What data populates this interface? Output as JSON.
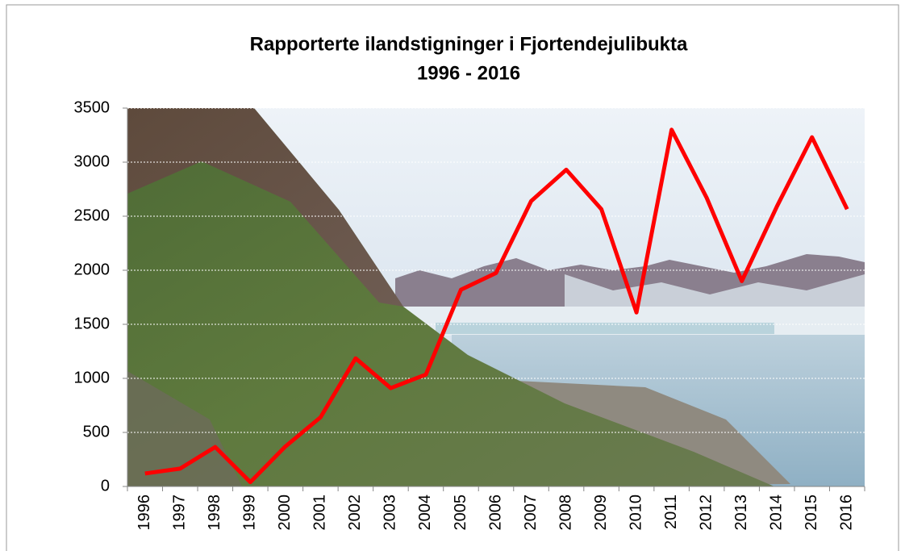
{
  "chart_data": {
    "type": "line",
    "title": "Rapporterte ilandstigninger i  Fjortendejulibukta",
    "subtitle": "1996 - 2016",
    "categories": [
      "1996",
      "1997",
      "1998",
      "1999",
      "2000",
      "2001",
      "2002",
      "2003",
      "2004",
      "2005",
      "2006",
      "2007",
      "2008",
      "2009",
      "2010",
      "2011",
      "2012",
      "2013",
      "2014",
      "2015",
      "2016"
    ],
    "values": [
      120,
      165,
      365,
      40,
      370,
      640,
      1185,
      910,
      1035,
      1820,
      1975,
      2640,
      2930,
      2565,
      1610,
      3300,
      2670,
      1900,
      2590,
      3230,
      2565
    ],
    "color": "#ff0000",
    "ylim": [
      0,
      3500
    ],
    "yticks": [
      0,
      500,
      1000,
      1500,
      2000,
      2500,
      3000,
      3500
    ],
    "grid": true
  }
}
